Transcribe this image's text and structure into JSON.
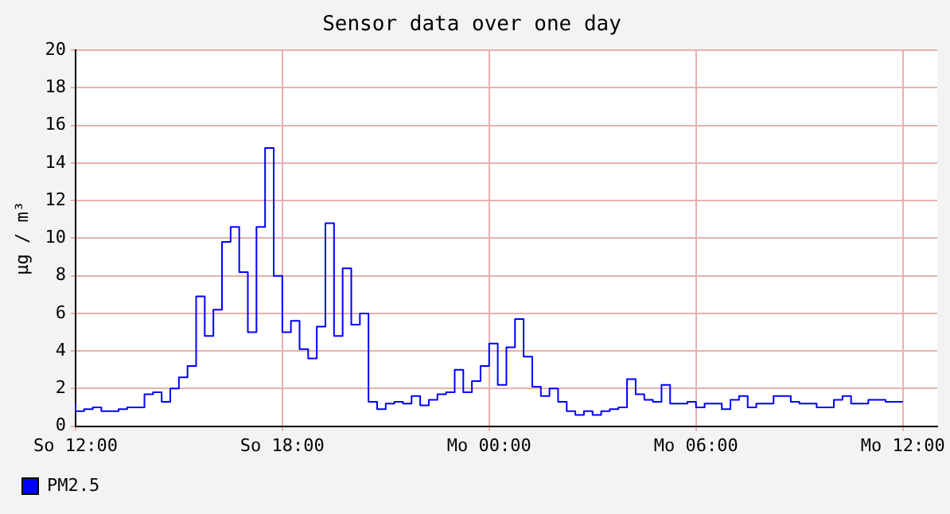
{
  "chart_data": {
    "type": "step",
    "title": "Sensor data over one day",
    "ylabel": "µg / m³",
    "categories": [
      "So 12:00",
      null,
      null,
      null,
      null,
      null,
      null,
      null,
      null,
      null,
      null,
      null,
      null,
      null,
      null,
      null,
      null,
      null,
      null,
      null,
      null,
      null,
      null,
      null,
      "So 18:00",
      null,
      null,
      null,
      null,
      null,
      null,
      null,
      null,
      null,
      null,
      null,
      null,
      null,
      null,
      null,
      null,
      null,
      null,
      null,
      null,
      null,
      null,
      null,
      "Mo 00:00",
      null,
      null,
      null,
      null,
      null,
      null,
      null,
      null,
      null,
      null,
      null,
      null,
      null,
      null,
      null,
      null,
      null,
      null,
      null,
      null,
      null,
      null,
      null,
      "Mo 06:00",
      null,
      null,
      null,
      null,
      null,
      null,
      null,
      null,
      null,
      null,
      null,
      null,
      null,
      null,
      null,
      null,
      null,
      null,
      null,
      null,
      null,
      null,
      null,
      "Mo 12:00",
      null,
      null,
      null,
      null
    ],
    "series": [
      {
        "name": "PM2.5",
        "color": "#0000ff",
        "values": [
          1.2,
          0.8,
          0.9,
          1.0,
          0.8,
          0.8,
          0.9,
          1.0,
          1.0,
          1.7,
          1.8,
          1.3,
          2.0,
          2.6,
          3.2,
          6.9,
          4.8,
          6.2,
          9.8,
          10.6,
          8.2,
          5.0,
          10.6,
          14.8,
          8.0,
          5.0,
          5.6,
          4.1,
          3.6,
          5.3,
          10.8,
          4.8,
          8.4,
          5.4,
          6.0,
          1.3,
          0.9,
          1.2,
          1.3,
          1.2,
          1.6,
          1.1,
          1.4,
          1.7,
          1.8,
          3.0,
          1.8,
          2.4,
          3.2,
          4.4,
          2.2,
          4.2,
          5.7,
          3.7,
          2.1,
          1.6,
          2.0,
          1.3,
          0.8,
          0.6,
          0.8,
          0.6,
          0.8,
          0.9,
          1.0,
          2.5,
          1.7,
          1.4,
          1.3,
          2.2,
          1.2,
          1.2,
          1.3,
          1.0,
          1.2,
          1.2,
          0.9,
          1.4,
          1.6,
          1.0,
          1.2,
          1.2,
          1.6,
          1.6,
          1.3,
          1.2,
          1.2,
          1.0,
          1.0,
          1.4,
          1.6,
          1.2,
          1.2,
          1.4,
          1.4,
          1.3,
          1.3,
          null,
          null,
          null,
          null
        ]
      }
    ],
    "ylim": [
      0,
      20
    ],
    "yticks": [
      0,
      2,
      4,
      6,
      8,
      10,
      12,
      14,
      16,
      18,
      20
    ],
    "grid": true,
    "legend": "bottom left"
  }
}
